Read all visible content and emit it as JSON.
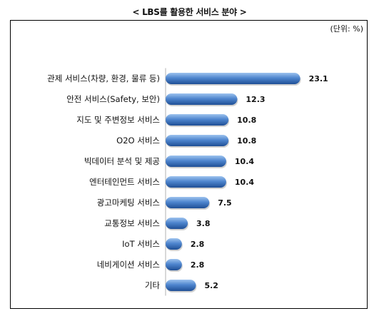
{
  "title": "< LBS를 활용한 서비스 분야 >",
  "unit": "(단위: %)",
  "colors": {
    "bar_top": "#9dc3ee",
    "bar_mid": "#4f86cf",
    "bar_bottom": "#1f4f95",
    "axis": "#b0b0b0",
    "frame": "#000000"
  },
  "chart_data": {
    "type": "bar",
    "orientation": "horizontal",
    "categories": [
      "관제 서비스(차량, 환경, 물류 등)",
      "안전 서비스(Safety, 보안)",
      "지도 및 주변정보 서비스",
      "O2O 서비스",
      "빅데이터 분석 및 제공",
      "엔터테인먼트 서비스",
      "광고마케팅 서비스",
      "교통정보 서비스",
      "IoT 서비스",
      "네비게이션 서비스",
      "기타"
    ],
    "values": [
      23.1,
      12.3,
      10.8,
      10.8,
      10.4,
      10.4,
      7.5,
      3.8,
      2.8,
      2.8,
      5.2
    ],
    "value_labels": [
      "23.1",
      "12.3",
      "10.8",
      "10.8",
      "10.4",
      "10.4",
      "7.5",
      "3.8",
      "2.8",
      "2.8",
      "5.2"
    ],
    "xlim": [
      0,
      24.5
    ],
    "grid": false,
    "legend": "none"
  }
}
